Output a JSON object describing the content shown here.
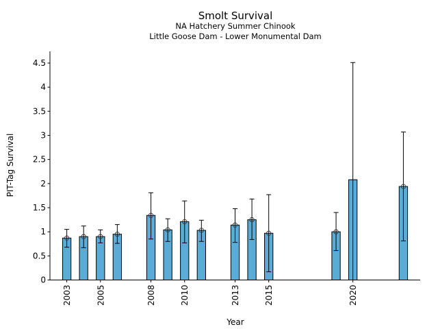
{
  "chart_data": {
    "type": "bar",
    "title": "Smolt Survival",
    "subtitle_lines": [
      "NA Hatchery Summer Chinook",
      "Little Goose Dam - Lower Monumental Dam"
    ],
    "xlabel": "Year",
    "ylabel": "PIT-Tag Survival",
    "xlim": [
      2002,
      2024
    ],
    "ylim": [
      0,
      4.75
    ],
    "x_ticks": [
      2003,
      2005,
      2008,
      2010,
      2013,
      2015,
      2020
    ],
    "x_tick_labels": [
      "2003",
      "2005",
      "2008",
      "2010",
      "2013",
      "2015",
      "2020"
    ],
    "y_ticks": [
      0,
      0.5,
      1,
      1.5,
      2,
      2.5,
      3,
      3.5,
      4,
      4.5
    ],
    "y_tick_labels": [
      "0",
      "0.5",
      "1",
      "1.5",
      "2",
      "2.5",
      "3",
      "3.5",
      "4",
      "4.5"
    ],
    "grid": false,
    "bar_color": "#5aabd6",
    "bar_width_years": 0.5,
    "series": [
      {
        "name": "PIT-Tag Survival",
        "points": [
          {
            "year": 2003,
            "value": 0.87,
            "lower": 0.68,
            "upper": 1.05,
            "marker": true
          },
          {
            "year": 2004,
            "value": 0.9,
            "lower": 0.67,
            "upper": 1.12,
            "marker": true
          },
          {
            "year": 2005,
            "value": 0.9,
            "lower": 0.77,
            "upper": 1.04,
            "marker": true
          },
          {
            "year": 2006,
            "value": 0.95,
            "lower": 0.76,
            "upper": 1.15,
            "marker": true
          },
          {
            "year": 2008,
            "value": 1.34,
            "lower": 0.85,
            "upper": 1.81,
            "marker": true
          },
          {
            "year": 2009,
            "value": 1.04,
            "lower": 0.8,
            "upper": 1.27,
            "marker": true
          },
          {
            "year": 2010,
            "value": 1.21,
            "lower": 0.77,
            "upper": 1.64,
            "marker": true
          },
          {
            "year": 2011,
            "value": 1.03,
            "lower": 0.8,
            "upper": 1.24,
            "marker": true
          },
          {
            "year": 2013,
            "value": 1.14,
            "lower": 0.78,
            "upper": 1.48,
            "marker": true
          },
          {
            "year": 2014,
            "value": 1.25,
            "lower": 0.84,
            "upper": 1.68,
            "marker": true
          },
          {
            "year": 2015,
            "value": 0.97,
            "lower": 0.17,
            "upper": 1.77,
            "marker": true
          },
          {
            "year": 2019,
            "value": 1.0,
            "lower": 0.61,
            "upper": 1.4,
            "marker": true
          },
          {
            "year": 2020,
            "value": 2.08,
            "lower": 0.0,
            "upper": 4.51,
            "marker": false
          },
          {
            "year": 2023,
            "value": 1.94,
            "lower": 0.81,
            "upper": 3.07,
            "marker": true
          }
        ]
      }
    ]
  }
}
